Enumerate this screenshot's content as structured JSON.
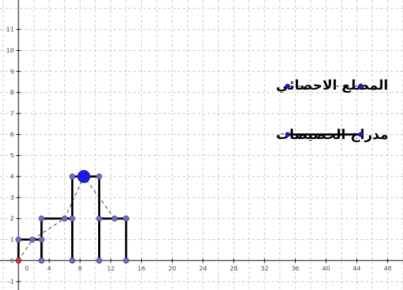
{
  "chart_data": {
    "type": "line",
    "x_ticks": [
      0,
      4,
      8,
      12,
      16,
      20,
      24,
      28,
      32,
      36,
      40,
      44,
      48
    ],
    "y_ticks": [
      -1,
      0,
      1,
      2,
      3,
      4,
      5,
      6,
      7,
      8,
      9,
      10,
      11
    ],
    "xlim": [
      -2.4,
      50
    ],
    "ylim": [
      -1.4,
      12.4
    ],
    "grid": true,
    "histogram": {
      "name": "مدراج الحصيصات",
      "bins": [
        {
          "from": 0,
          "to": 3,
          "value": 1
        },
        {
          "from": 3,
          "to": 7,
          "value": 2
        },
        {
          "from": 7,
          "to": 10.5,
          "value": 4
        },
        {
          "from": 10.5,
          "to": 14,
          "value": 2
        }
      ]
    },
    "polygon": {
      "name": "المضلع الاحصائي",
      "points": [
        [
          0,
          0
        ],
        [
          1.8,
          1
        ],
        [
          6,
          2
        ],
        [
          8.5,
          4
        ],
        [
          12.5,
          2
        ],
        [
          14,
          2
        ]
      ]
    },
    "legend": [
      {
        "label": "المضلع الاحصائي",
        "style": "dashed",
        "sample_x": [
          35,
          44.5
        ],
        "y": 8.3
      },
      {
        "label": "مدراج الحصيصات",
        "style": "solid",
        "sample_x": [
          35,
          44.5
        ],
        "y": 6
      }
    ],
    "colors": {
      "bars": "#000000",
      "points": "#6a6acc",
      "legend_points": "#1a1acc",
      "origin": "#cc3333",
      "grid": "#c8c8c8"
    }
  }
}
